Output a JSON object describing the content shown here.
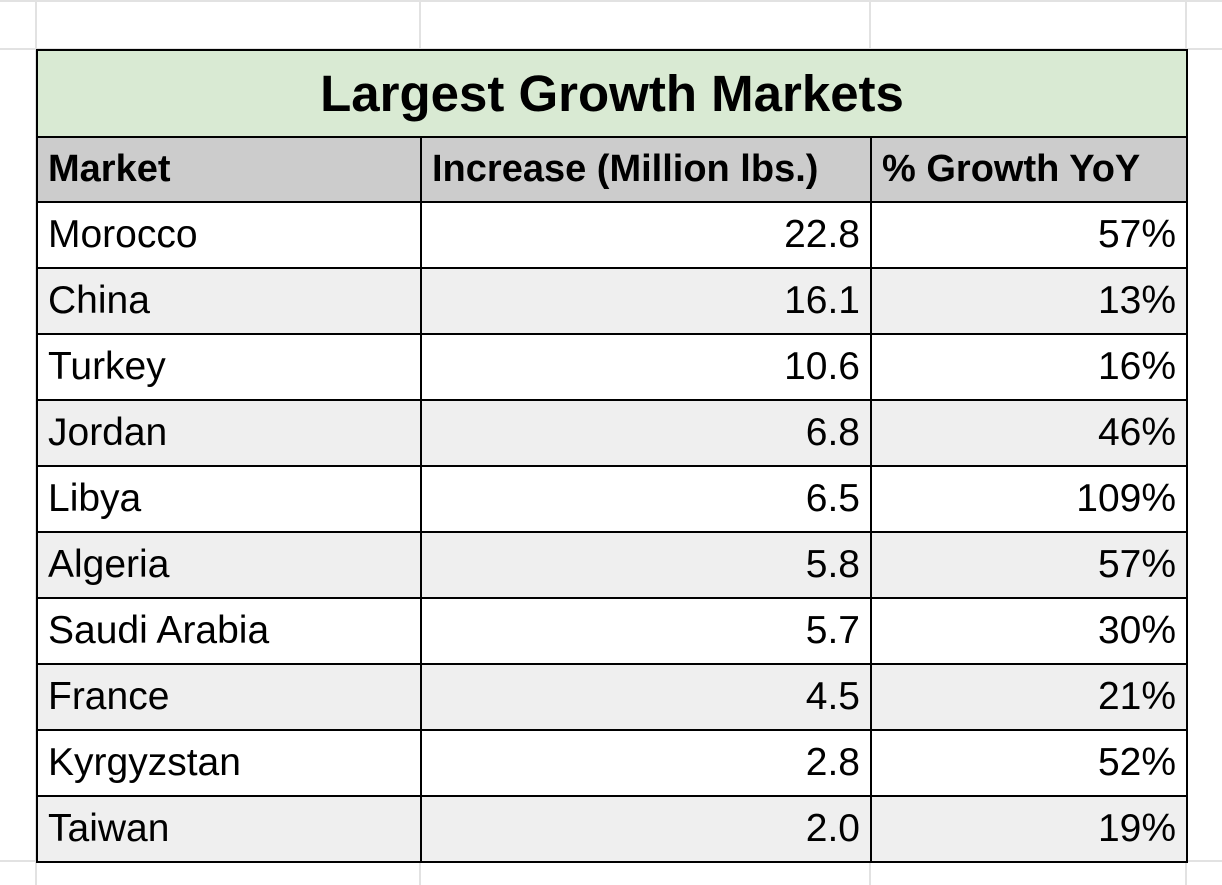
{
  "table": {
    "title": "Largest Growth Markets",
    "headers": [
      "Market",
      "Increase (Million lbs.)",
      "% Growth YoY"
    ],
    "rows": [
      {
        "market": "Morocco",
        "increase": "22.8",
        "growth": "57%"
      },
      {
        "market": "China",
        "increase": "16.1",
        "growth": "13%"
      },
      {
        "market": "Turkey",
        "increase": "10.6",
        "growth": "16%"
      },
      {
        "market": "Jordan",
        "increase": "6.8",
        "growth": "46%"
      },
      {
        "market": "Libya",
        "increase": "6.5",
        "growth": "109%"
      },
      {
        "market": "Algeria",
        "increase": "5.8",
        "growth": "57%"
      },
      {
        "market": "Saudi Arabia",
        "increase": "5.7",
        "growth": "30%"
      },
      {
        "market": "France",
        "increase": "4.5",
        "growth": "21%"
      },
      {
        "market": "Kyrgyzstan",
        "increase": "2.8",
        "growth": "52%"
      },
      {
        "market": "Taiwan",
        "increase": "2.0",
        "growth": "19%"
      }
    ]
  },
  "colors": {
    "title_fill": "#d9ead3",
    "header_fill": "#cccccc",
    "alt_row_fill": "#efefef",
    "border": "#000000",
    "gridline": "#e2e2e2"
  }
}
